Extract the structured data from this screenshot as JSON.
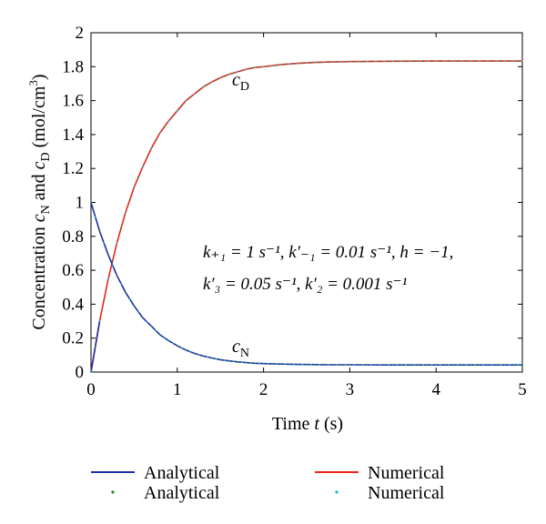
{
  "chart_data": {
    "type": "line",
    "xlabel_prefix": "Time ",
    "xlabel_var": "t",
    "xlabel_suffix": " (s)",
    "ylabel": {
      "prefix": "Concentration ",
      "c1": "c",
      "c1_sub": "N",
      "mid": " and ",
      "c2": "c",
      "c2_sub": "D",
      "unit": " (mol/cm",
      "unit_sup": "3",
      "unit_end": ")"
    },
    "xlim": [
      0,
      5
    ],
    "ylim": [
      0,
      2
    ],
    "x_ticks": [
      "0",
      "1",
      "2",
      "3",
      "4",
      "5"
    ],
    "y_ticks": [
      "0",
      "0.2",
      "0.4",
      "0.6",
      "0.8",
      "1",
      "1.2",
      "1.4",
      "1.6",
      "1.8",
      "2"
    ],
    "grid": false,
    "curve_labels": {
      "cD": {
        "text": "c",
        "sub": "D"
      },
      "cN": {
        "text": "c",
        "sub": "N"
      }
    },
    "params_line1": "k₊₁ = 1 s⁻¹, k′₋₁ = 0.01 s⁻¹, h = −1,",
    "params_line2": "k′₃ = 0.05 s⁻¹, k′₂ = 0.001 s⁻¹",
    "x": [
      0,
      0.1,
      0.2,
      0.3,
      0.4,
      0.5,
      0.6,
      0.7,
      0.8,
      0.9,
      1.0,
      1.1,
      1.2,
      1.3,
      1.4,
      1.5,
      1.6,
      1.7,
      1.8,
      1.9,
      2.0,
      2.2,
      2.4,
      2.6,
      2.8,
      3.0,
      3.5,
      4.0,
      4.5,
      5.0
    ],
    "series": [
      {
        "name": "Analytical",
        "style": "line",
        "color": "#1f2ea8",
        "cN": [
          1.0,
          0.83,
          0.69,
          0.57,
          0.47,
          0.39,
          0.32,
          0.27,
          0.22,
          0.185,
          0.155,
          0.13,
          0.11,
          0.095,
          0.083,
          0.073,
          0.066,
          0.06,
          0.056,
          0.052,
          0.05,
          0.047,
          0.045,
          0.044,
          0.043,
          0.043,
          0.042,
          0.042,
          0.042,
          0.042
        ],
        "cD": [
          0.0,
          0.3,
          0.55,
          0.76,
          0.94,
          1.09,
          1.21,
          1.32,
          1.41,
          1.48,
          1.54,
          1.6,
          1.64,
          1.68,
          1.71,
          1.735,
          1.755,
          1.77,
          1.785,
          1.795,
          1.8,
          1.812,
          1.82,
          1.825,
          1.828,
          1.83,
          1.832,
          1.833,
          1.833,
          1.833
        ]
      },
      {
        "name": "Numerical",
        "style": "line",
        "color": "#e8261d"
      },
      {
        "name": "Analytical",
        "style": "dots",
        "color": "#1a8a2a"
      },
      {
        "name": "Numerical",
        "style": "dots",
        "color": "#19b8c8"
      }
    ],
    "legend": {
      "placement": "bottom",
      "entries": [
        "Analytical",
        "Numerical",
        "Analytical",
        "Numerical"
      ]
    }
  }
}
